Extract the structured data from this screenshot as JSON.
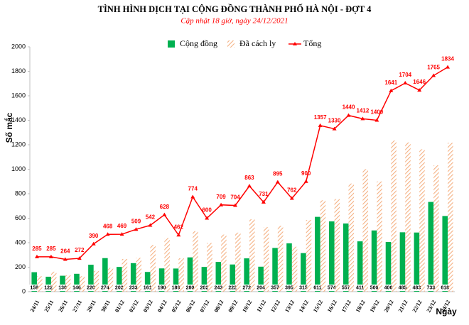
{
  "chart_data": {
    "type": "bar",
    "title": "TÌNH HÌNH DỊCH TẠI CỘNG ĐỒNG THÀNH PHỐ HÀ NỘI - ĐỢT 4",
    "subtitle": "Cập nhật 18 giờ, ngày 24/12/2021",
    "y_label": "Số mắc",
    "x_label": "Ngày",
    "categories": [
      "24/11",
      "25/11",
      "26/11",
      "27/11",
      "29/11",
      "30/11",
      "01/12",
      "02/12",
      "03/12",
      "04/12",
      "05/12",
      "06/12",
      "07/12",
      "08/12",
      "09/12",
      "10/12",
      "11/12",
      "12/12",
      "13/12",
      "14/12",
      "15/12",
      "16/12",
      "17/12",
      "18/12",
      "19/12",
      "20/12",
      "21/12",
      "22/12",
      "23/12",
      "24/12"
    ],
    "series": [
      {
        "name": "Cộng đồng",
        "color": "#00b050",
        "type": "bar",
        "pattern": "solid",
        "values": [
          159,
          122,
          130,
          146,
          220,
          274,
          202,
          233,
          161,
          190,
          189,
          280,
          202,
          243,
          222,
          272,
          204,
          357,
          395,
          315,
          611,
          574,
          557,
          411,
          500,
          406,
          485,
          483,
          733,
          618
        ]
      },
      {
        "name": "Đã cách ly",
        "color": "#f4b183",
        "type": "bar",
        "pattern": "hatch",
        "values": [
          126,
          163,
          134,
          126,
          170,
          194,
          267,
          276,
          381,
          438,
          273,
          494,
          398,
          466,
          482,
          591,
          527,
          538,
          367,
          585,
          746,
          756,
          883,
          1001,
          900,
          1235,
          1219,
          1163,
          1032,
          1216
        ]
      },
      {
        "name": "Tổng",
        "color": "#ff0000",
        "type": "line",
        "values": [
          285,
          285,
          264,
          272,
          390,
          468,
          469,
          509,
          542,
          628,
          462,
          774,
          600,
          709,
          704,
          863,
          731,
          895,
          762,
          900,
          1357,
          1330,
          1440,
          1412,
          1400,
          1641,
          1704,
          1646,
          1765,
          1834
        ]
      }
    ],
    "ylim": [
      0,
      2000
    ],
    "yticks": [
      0,
      200,
      400,
      600,
      800,
      1000,
      1200,
      1400,
      1600,
      1800,
      2000
    ],
    "grid": false
  }
}
